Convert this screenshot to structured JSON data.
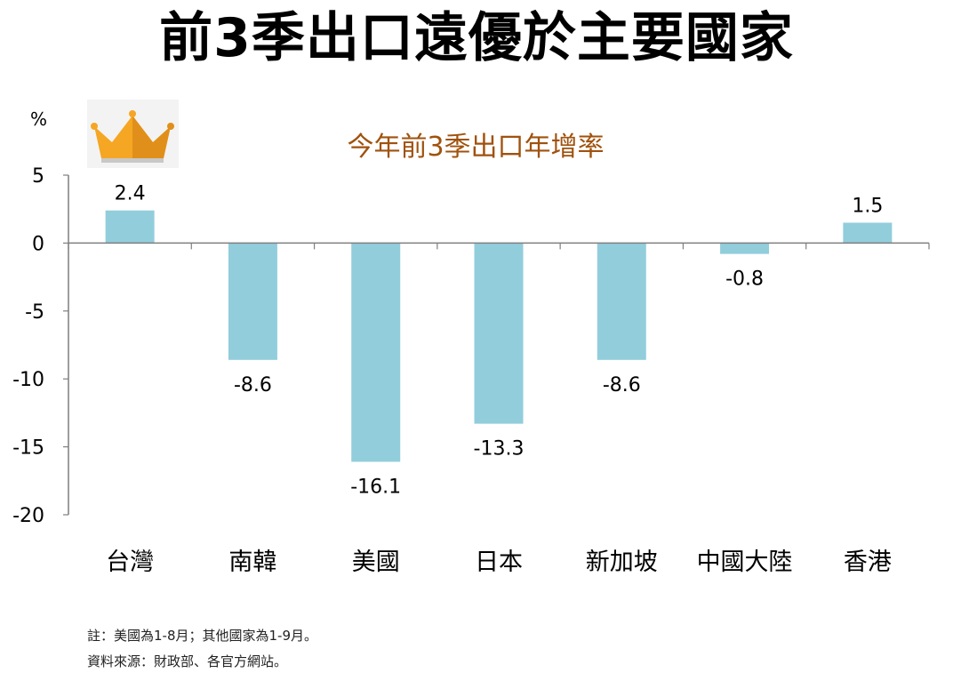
{
  "title": "前3季出口遠優於主要國家",
  "crown_icon": "crown-icon",
  "colors": {
    "bar": "#92cddc",
    "axis": "#7f7f7f",
    "title": "#a0520d"
  },
  "chart_data": {
    "type": "bar",
    "title": "今年前3季出口年增率",
    "ylabel": "%",
    "xlabel": "",
    "categories": [
      "台灣",
      "南韓",
      "美國",
      "日本",
      "新加坡",
      "中國大陸",
      "香港"
    ],
    "values": [
      2.4,
      -8.6,
      -16.1,
      -13.3,
      -8.6,
      -0.8,
      1.5
    ],
    "data_labels": [
      "2.4",
      "-8.6",
      "-16.1",
      "-13.3",
      "-8.6",
      "-0.8",
      "1.5"
    ],
    "ylim": [
      -20,
      5
    ],
    "yticks": [
      5,
      0,
      -5,
      -10,
      -15,
      -20
    ],
    "grid": false,
    "legend": "none"
  },
  "footnotes": [
    "註：美國為1-8月；其他國家為1-9月。",
    "資料來源：財政部、各官方網站。"
  ]
}
